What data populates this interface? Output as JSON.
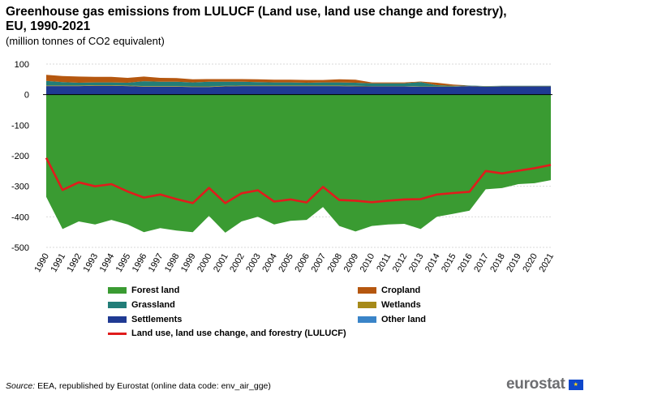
{
  "header": {
    "title": "Greenhouse gas emissions from LULUCF (Land use, land use change and forestry), EU, 1990-2021",
    "subtitle": "(million tonnes of CO2 equivalent)"
  },
  "footer": {
    "source_label": "Source:",
    "source_text": " EEA, republished by Eurostat (online data code: env_air_gge)",
    "logo_text": "eurostat",
    "flag_icon": "eu-flag-icon"
  },
  "colors": {
    "forest": "#3a9b32",
    "cropland": "#b5570f",
    "grassland": "#227d78",
    "wetlands": "#a68a1a",
    "settlements": "#1f3a93",
    "other": "#3a84c8",
    "lulucf": "#e01c1c",
    "grid": "#d9d9d9"
  },
  "chart_data": {
    "type": "area",
    "title": "Greenhouse gas emissions from LULUCF (Land use, land use change and forestry), EU, 1990-2021",
    "ylabel": "million tonnes of CO2 equivalent",
    "ylim": [
      -500,
      100
    ],
    "yticks": [
      100,
      0,
      -100,
      -200,
      -300,
      -400,
      -500
    ],
    "grid": true,
    "legend_position": "bottom",
    "categories": [
      "1990",
      "1991",
      "1992",
      "1993",
      "1994",
      "1995",
      "1996",
      "1997",
      "1998",
      "1999",
      "2000",
      "2001",
      "2002",
      "2003",
      "2004",
      "2005",
      "2006",
      "2007",
      "2008",
      "2009",
      "2010",
      "2011",
      "2012",
      "2013",
      "2014",
      "2015",
      "2016",
      "2017",
      "2018",
      "2019",
      "2020",
      "2021"
    ],
    "series": [
      {
        "name": "Forest land",
        "kind": "area",
        "color_key": "forest",
        "values": [
          -335,
          -440,
          -415,
          -425,
          -410,
          -425,
          -450,
          -437,
          -445,
          -450,
          -397,
          -452,
          -415,
          -400,
          -425,
          -413,
          -410,
          -368,
          -430,
          -448,
          -430,
          -425,
          -423,
          -440,
          -400,
          -390,
          -380,
          -310,
          -306,
          -293,
          -290,
          -280
        ]
      },
      {
        "name": "Cropland",
        "kind": "area",
        "color_key": "cropland",
        "values": [
          20,
          20,
          20,
          18,
          18,
          16,
          15,
          13,
          12,
          10,
          9,
          9,
          9,
          9,
          9,
          9,
          9,
          8,
          10,
          10,
          3,
          3,
          3,
          2,
          8,
          4,
          0,
          0,
          0,
          0,
          0,
          0
        ]
      },
      {
        "name": "Grassland",
        "kind": "area",
        "color_key": "grassland",
        "values": [
          15,
          11,
          9,
          9,
          9,
          9,
          16,
          14,
          14,
          13,
          15,
          13,
          12,
          11,
          10,
          10,
          9,
          10,
          10,
          10,
          9,
          9,
          9,
          14,
          4,
          2,
          1,
          1,
          1,
          1,
          1,
          1
        ]
      },
      {
        "name": "Wetlands",
        "kind": "area",
        "color_key": "wetlands",
        "values": [
          2,
          2,
          2,
          2,
          2,
          2,
          2,
          2,
          2,
          2,
          2,
          2,
          2,
          2,
          2,
          2,
          2,
          2,
          2,
          2,
          1,
          1,
          1,
          1,
          1,
          1,
          1,
          1,
          1,
          1,
          1,
          1
        ]
      },
      {
        "name": "Settlements",
        "kind": "area",
        "color_key": "settlements",
        "values": [
          28,
          28,
          28,
          29,
          29,
          28,
          26,
          26,
          26,
          25,
          25,
          27,
          28,
          28,
          28,
          28,
          28,
          28,
          28,
          27,
          27,
          27,
          27,
          26,
          26,
          26,
          28,
          26,
          27,
          27,
          27,
          27
        ]
      },
      {
        "name": "Other land",
        "kind": "area",
        "color_key": "other",
        "values": [
          0,
          0,
          0,
          0,
          0,
          0,
          0,
          0,
          0,
          0,
          0,
          0,
          0,
          0,
          0,
          0,
          0,
          0,
          0,
          0,
          0,
          0,
          0,
          0,
          0,
          0,
          0,
          0,
          0,
          0,
          0,
          0
        ]
      },
      {
        "name": "Land use, land use change, and forestry (LULUCF)",
        "kind": "line",
        "color_key": "lulucf",
        "values": [
          -207,
          -312,
          -287,
          -300,
          -293,
          -317,
          -337,
          -327,
          -342,
          -355,
          -305,
          -355,
          -323,
          -313,
          -350,
          -343,
          -353,
          -302,
          -345,
          -347,
          -352,
          -347,
          -343,
          -342,
          -327,
          -322,
          -318,
          -250,
          -258,
          -249,
          -241,
          -230
        ]
      }
    ]
  }
}
